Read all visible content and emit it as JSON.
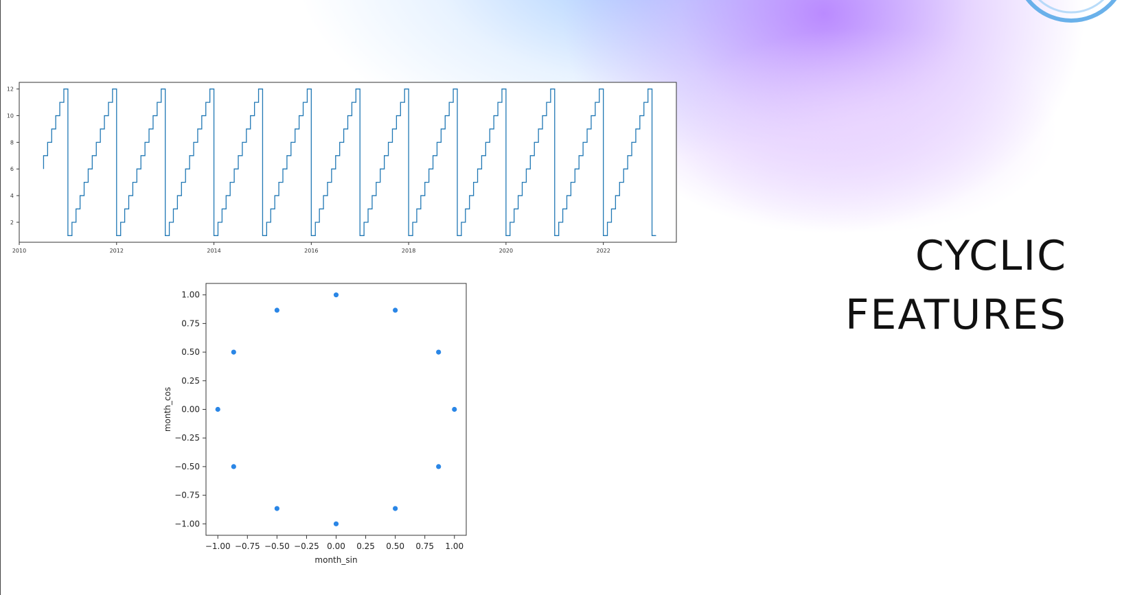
{
  "slide": {
    "title_line1": "CYCLIC",
    "title_line2": "FEATURES",
    "decoration_colors": [
      "#9ec8ff",
      "#b27cff",
      "#ead9ff"
    ]
  },
  "chart_data": [
    {
      "type": "line",
      "title": "",
      "xlabel": "",
      "ylabel": "",
      "xlim": [
        2010,
        2023.5
      ],
      "ylim": [
        0.5,
        12.5
      ],
      "x_ticks": [
        2010,
        2012,
        2014,
        2016,
        2018,
        2020,
        2022
      ],
      "x_tick_labels": [
        "2010",
        "2012",
        "2014",
        "2016",
        "2018",
        "2020",
        "2022"
      ],
      "y_ticks": [
        2,
        4,
        6,
        8,
        10,
        12
      ],
      "y_tick_labels": [
        "2",
        "4",
        "6",
        "8",
        "10",
        "12"
      ],
      "grid": false,
      "color": "#1f77b4",
      "series": [
        {
          "x_start": 2010.5,
          "x_end": 2023.0,
          "start_month": 6,
          "end_month": 1,
          "description": "month of year step function, 1..12 repeating each year"
        }
      ]
    },
    {
      "type": "scatter",
      "title": "",
      "xlabel": "month_sin",
      "ylabel": "month_cos",
      "xlim": [
        -1.1,
        1.1
      ],
      "ylim": [
        -1.1,
        1.1
      ],
      "x_ticks": [
        -1.0,
        -0.75,
        -0.5,
        -0.25,
        0.0,
        0.25,
        0.5,
        0.75,
        1.0
      ],
      "x_tick_labels": [
        "−1.00",
        "−0.75",
        "−0.50",
        "−0.25",
        "0.00",
        "0.25",
        "0.50",
        "0.75",
        "1.00"
      ],
      "y_ticks": [
        1.0,
        0.75,
        0.5,
        0.25,
        0.0,
        -0.25,
        -0.5,
        -0.75,
        -1.0
      ],
      "y_tick_labels": [
        "1.00",
        "0.75",
        "0.50",
        "0.25",
        "0.00",
        "−0.25",
        "−0.50",
        "−0.75",
        "−1.00"
      ],
      "grid": false,
      "color": "#1f77b4",
      "points": [
        {
          "x": 0.5,
          "y": 0.866
        },
        {
          "x": 0.866,
          "y": 0.5
        },
        {
          "x": 1.0,
          "y": 0.0
        },
        {
          "x": 0.866,
          "y": -0.5
        },
        {
          "x": 0.5,
          "y": -0.866
        },
        {
          "x": 0.0,
          "y": -1.0
        },
        {
          "x": -0.5,
          "y": -0.866
        },
        {
          "x": -0.866,
          "y": -0.5
        },
        {
          "x": -1.0,
          "y": 0.0
        },
        {
          "x": -0.866,
          "y": 0.5
        },
        {
          "x": -0.5,
          "y": 0.866
        },
        {
          "x": 0.0,
          "y": 1.0
        }
      ]
    }
  ]
}
